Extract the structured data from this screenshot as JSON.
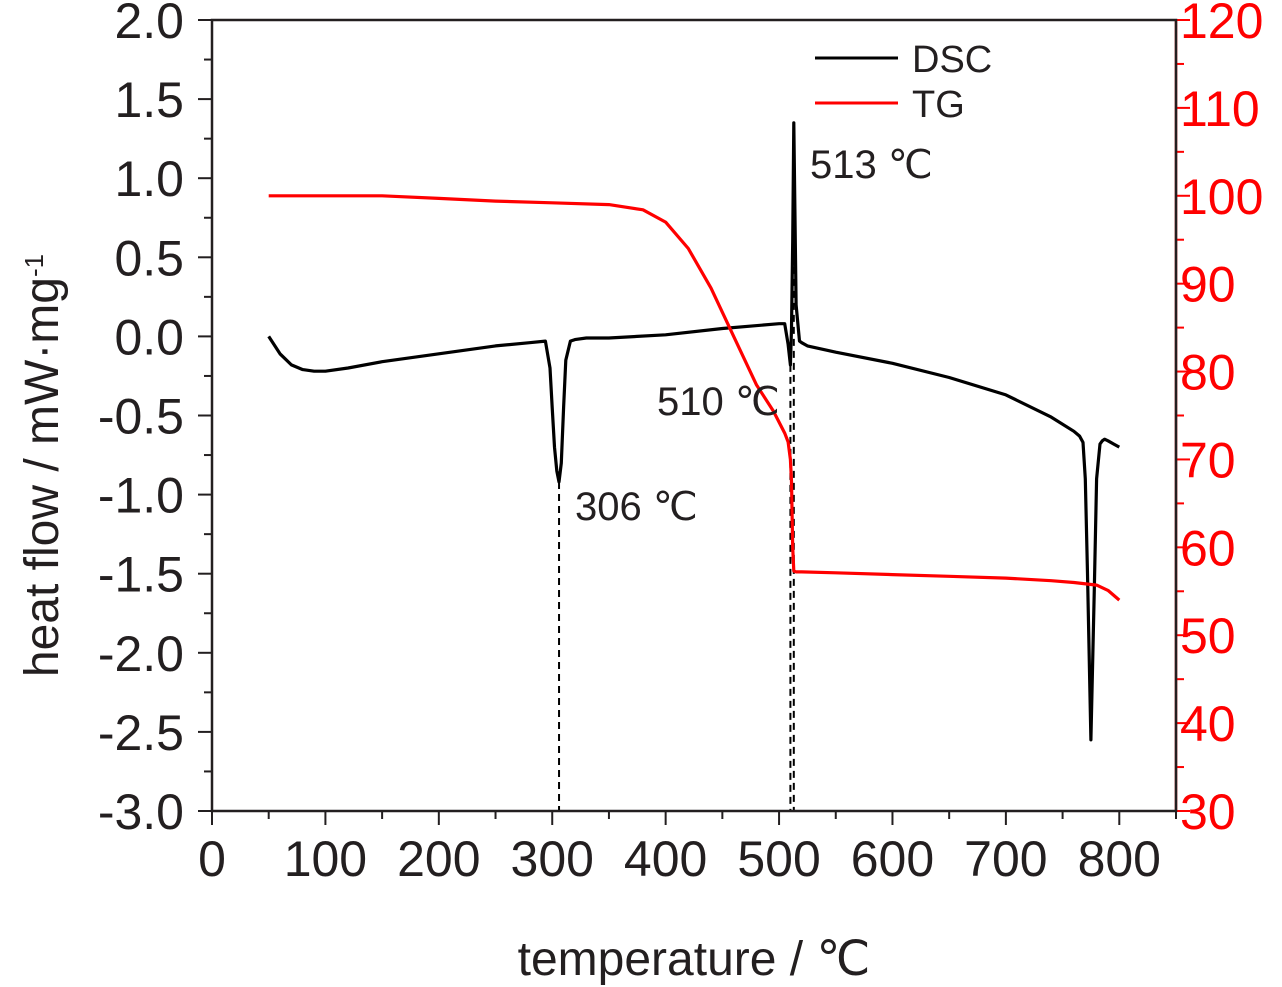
{
  "chart_data": {
    "type": "line",
    "xlabel": "temperature / ℃",
    "ylabel": "heat flow / mW·mg",
    "ylabel_sup": "-1",
    "xlim": [
      0,
      850
    ],
    "ylim_left": [
      -3.0,
      2.0
    ],
    "ylim_right": [
      30,
      120
    ],
    "x_ticks": [
      "0",
      "100",
      "200",
      "300",
      "400",
      "500",
      "600",
      "700",
      "800"
    ],
    "y_left_ticks": [
      "2.0",
      "1.5",
      "1.0",
      "0.5",
      "0.0",
      "-0.5",
      "-1.0",
      "-1.5",
      "-2.0",
      "-2.5",
      "-3.0"
    ],
    "y_right_ticks": [
      "120",
      "110",
      "100",
      "90",
      "80",
      "70",
      "60",
      "50",
      "40",
      "30"
    ],
    "colors": {
      "axis": "#231f20",
      "dsc": "#000000",
      "tg": "#ff0000",
      "right_axis": "#ff0000"
    },
    "legend_position": "top-right",
    "legend": [
      {
        "name": "DSC",
        "color": "#000000"
      },
      {
        "name": "TG",
        "color": "#ff0000"
      }
    ],
    "annotations": [
      {
        "text": "306 ℃",
        "x": 306,
        "y": -1.0
      },
      {
        "text": "510 ℃",
        "x": 510,
        "y": -0.5
      },
      {
        "text": "513 ℃",
        "x": 513,
        "y": 1.1
      }
    ],
    "reference_lines_x": [
      306,
      510,
      513
    ],
    "series": [
      {
        "name": "DSC",
        "axis": "left",
        "x": [
          50,
          60,
          70,
          80,
          90,
          100,
          120,
          150,
          200,
          250,
          280,
          294,
          298,
          300,
          302,
          304,
          306,
          308,
          310,
          312,
          316,
          320,
          330,
          350,
          400,
          450,
          500,
          505,
          508,
          510,
          511,
          512,
          513,
          514,
          515,
          518,
          520,
          525,
          550,
          600,
          650,
          700,
          740,
          760,
          765,
          768,
          770,
          772,
          775,
          778,
          780,
          783,
          785,
          787,
          790,
          795,
          800
        ],
        "y": [
          0.0,
          -0.11,
          -0.18,
          -0.21,
          -0.22,
          -0.22,
          -0.2,
          -0.16,
          -0.11,
          -0.06,
          -0.04,
          -0.03,
          -0.2,
          -0.45,
          -0.7,
          -0.85,
          -0.92,
          -0.8,
          -0.45,
          -0.15,
          -0.03,
          -0.02,
          -0.01,
          -0.01,
          0.01,
          0.05,
          0.08,
          0.08,
          -0.05,
          -0.18,
          0.05,
          0.6,
          1.35,
          0.8,
          0.2,
          -0.03,
          -0.04,
          -0.06,
          -0.1,
          -0.17,
          -0.26,
          -0.37,
          -0.51,
          -0.6,
          -0.63,
          -0.67,
          -0.9,
          -1.5,
          -2.55,
          -1.6,
          -0.9,
          -0.68,
          -0.66,
          -0.65,
          -0.66,
          -0.68,
          -0.7
        ]
      },
      {
        "name": "TG",
        "axis": "right",
        "x": [
          50,
          100,
          150,
          200,
          250,
          300,
          350,
          380,
          400,
          420,
          440,
          460,
          480,
          495,
          505,
          508,
          510,
          511,
          512,
          513,
          515,
          520,
          550,
          600,
          650,
          700,
          740,
          760,
          780,
          790,
          800
        ],
        "y": [
          100,
          100,
          100,
          99.7,
          99.4,
          99.2,
          99.0,
          98.4,
          97.0,
          94.0,
          89.5,
          84.0,
          78.5,
          75.5,
          73.0,
          72.0,
          70.0,
          67.5,
          60.0,
          57.3,
          57.2,
          57.2,
          57.1,
          56.9,
          56.7,
          56.5,
          56.2,
          56.0,
          55.7,
          55.1,
          54.0
        ]
      }
    ]
  }
}
